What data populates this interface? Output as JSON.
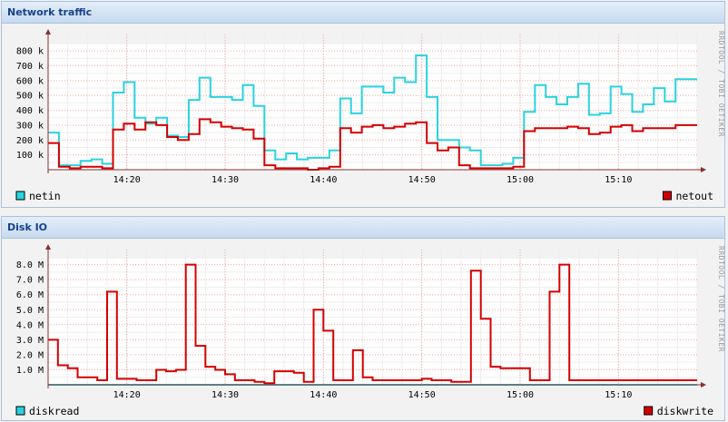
{
  "panels": [
    {
      "title": "Network traffic"
    },
    {
      "title": "Disk IO"
    }
  ],
  "watermark": "RRDTOOL / TOBI OETIKER",
  "chart_data": [
    {
      "type": "line",
      "title": "Network traffic",
      "xlabel": "",
      "ylabel": "",
      "x_time_start": "14:12",
      "x_time_end": "15:18",
      "step_minutes": 1.5,
      "x_tick_labels": [
        "14:20",
        "14:30",
        "14:40",
        "14:50",
        "15:00",
        "15:10"
      ],
      "y_tick_labels": [
        "100 k",
        "200 k",
        "300 k",
        "400 k",
        "500 k",
        "600 k",
        "700 k",
        "800 k"
      ],
      "ylim": [
        0,
        850000
      ],
      "grid": true,
      "legend": "bottom",
      "series": [
        {
          "name": "netin",
          "color": "#29d3e0",
          "values": [
            250000,
            30000,
            30000,
            60000,
            70000,
            40000,
            520000,
            590000,
            350000,
            310000,
            350000,
            230000,
            220000,
            470000,
            620000,
            490000,
            490000,
            470000,
            570000,
            430000,
            130000,
            70000,
            110000,
            70000,
            80000,
            80000,
            130000,
            480000,
            380000,
            560000,
            560000,
            520000,
            620000,
            590000,
            770000,
            490000,
            200000,
            200000,
            150000,
            130000,
            30000,
            30000,
            40000,
            80000,
            390000,
            570000,
            490000,
            440000,
            490000,
            580000,
            370000,
            380000,
            560000,
            510000,
            390000,
            440000,
            550000,
            460000,
            610000,
            610000
          ]
        },
        {
          "name": "netout",
          "color": "#d40000",
          "values": [
            180000,
            20000,
            10000,
            20000,
            20000,
            10000,
            270000,
            310000,
            270000,
            320000,
            300000,
            220000,
            200000,
            240000,
            340000,
            320000,
            290000,
            280000,
            270000,
            210000,
            30000,
            10000,
            10000,
            10000,
            0,
            10000,
            20000,
            280000,
            250000,
            290000,
            300000,
            280000,
            290000,
            310000,
            320000,
            180000,
            130000,
            150000,
            30000,
            10000,
            10000,
            10000,
            10000,
            20000,
            260000,
            280000,
            280000,
            280000,
            290000,
            280000,
            240000,
            250000,
            290000,
            300000,
            260000,
            280000,
            280000,
            280000,
            300000,
            300000
          ]
        }
      ]
    },
    {
      "type": "line",
      "title": "Disk IO",
      "xlabel": "",
      "ylabel": "",
      "x_time_start": "14:12",
      "x_time_end": "15:18",
      "step_minutes": 1,
      "x_tick_labels": [
        "14:20",
        "14:30",
        "14:40",
        "14:50",
        "15:00",
        "15:10"
      ],
      "y_tick_labels": [
        "1.0 M",
        "2.0 M",
        "3.0 M",
        "4.0 M",
        "5.0 M",
        "6.0 M",
        "7.0 M",
        "8.0 M"
      ],
      "ylim": [
        0,
        8400000
      ],
      "grid": true,
      "legend": "bottom",
      "series": [
        {
          "name": "diskread",
          "color": "#29d3e0",
          "values": [
            0,
            0,
            0,
            0,
            0,
            0,
            0,
            0,
            0,
            0,
            0,
            0,
            0,
            0,
            0,
            0,
            0,
            0,
            0,
            0,
            0,
            0,
            0,
            0,
            0,
            0,
            0,
            0,
            0,
            0,
            0,
            0,
            0,
            0,
            0,
            0,
            0,
            0,
            0,
            0,
            0,
            0,
            0,
            0,
            0,
            0,
            0,
            0,
            0,
            0,
            0,
            0,
            0,
            0,
            0,
            0,
            0,
            0,
            0,
            0,
            0,
            0,
            0,
            0,
            0,
            0
          ]
        },
        {
          "name": "diskwrite",
          "color": "#d40000",
          "values": [
            3000000,
            1300000,
            1100000,
            500000,
            500000,
            300000,
            6200000,
            400000,
            400000,
            300000,
            300000,
            1000000,
            900000,
            1000000,
            8000000,
            2600000,
            1200000,
            1000000,
            700000,
            300000,
            300000,
            200000,
            100000,
            900000,
            900000,
            800000,
            200000,
            5000000,
            3600000,
            300000,
            300000,
            2300000,
            500000,
            300000,
            300000,
            300000,
            300000,
            300000,
            400000,
            300000,
            300000,
            200000,
            200000,
            7600000,
            4400000,
            1200000,
            1100000,
            1100000,
            1100000,
            300000,
            300000,
            6200000,
            8000000,
            300000,
            300000,
            300000,
            300000,
            300000,
            300000,
            300000,
            300000,
            300000,
            300000,
            300000,
            300000,
            300000
          ]
        }
      ]
    }
  ]
}
